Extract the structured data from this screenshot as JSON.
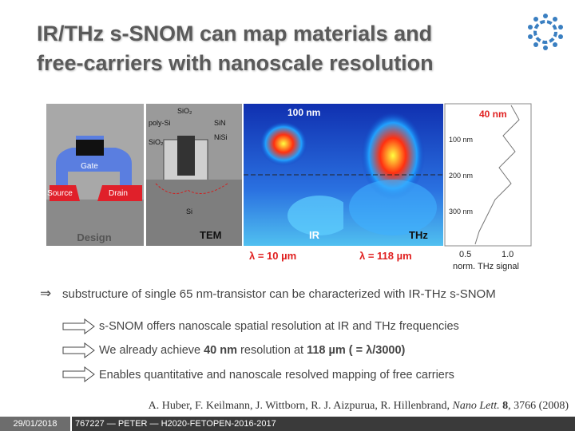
{
  "header": {
    "title": [
      "IR/THz s-SNOM can map materials and",
      "free-carriers with nanoscale resolution"
    ]
  },
  "figure": {
    "design": {
      "gate": "Gate",
      "source": "Source",
      "drain": "Drain",
      "caption": "Design"
    },
    "tem": {
      "labels": [
        "SiO₂",
        "poly-Si",
        "SiN",
        "NiSi",
        "SiO₂",
        "Si"
      ],
      "caption": "TEM"
    },
    "ir": {
      "scale": "100 nm",
      "caption": "IR",
      "wavelength": "λ = 10 µm"
    },
    "thz": {
      "caption": "THz",
      "wavelength": "λ = 118 µm"
    },
    "profile": {
      "scale": "40 nm",
      "depths": [
        "100 nm",
        "200 nm",
        "300 nm"
      ],
      "ticks": [
        "0.5",
        "1.0"
      ],
      "axis_label": "norm. THz signal"
    }
  },
  "main_point": "substructure of single 65 nm-transistor can be characterized with IR-THz s-SNOM",
  "bullets": [
    {
      "parts": [
        "s-SNOM offers nanoscale spatial resolution at IR and THz frequencies"
      ]
    },
    {
      "parts": [
        "We already achieve ",
        "40 nm",
        " resolution at ",
        "118 µm",
        " ( = ",
        "λ/3000",
        ")"
      ]
    },
    {
      "parts": [
        "Enables quantitative and nanoscale resolved mapping of free carriers"
      ]
    }
  ],
  "citation": {
    "authors": "A. Huber, F. Keilmann, J. Wittborn, R. J. Aizpurua, R. Hillenbrand, ",
    "journal": "Nano Lett.",
    "volume": "8",
    "rest": ", 3766 (2008)"
  },
  "footer": {
    "date": "29/01/2018",
    "project": "767227 — PETER — H2020-FETOPEN-2016-2017"
  }
}
